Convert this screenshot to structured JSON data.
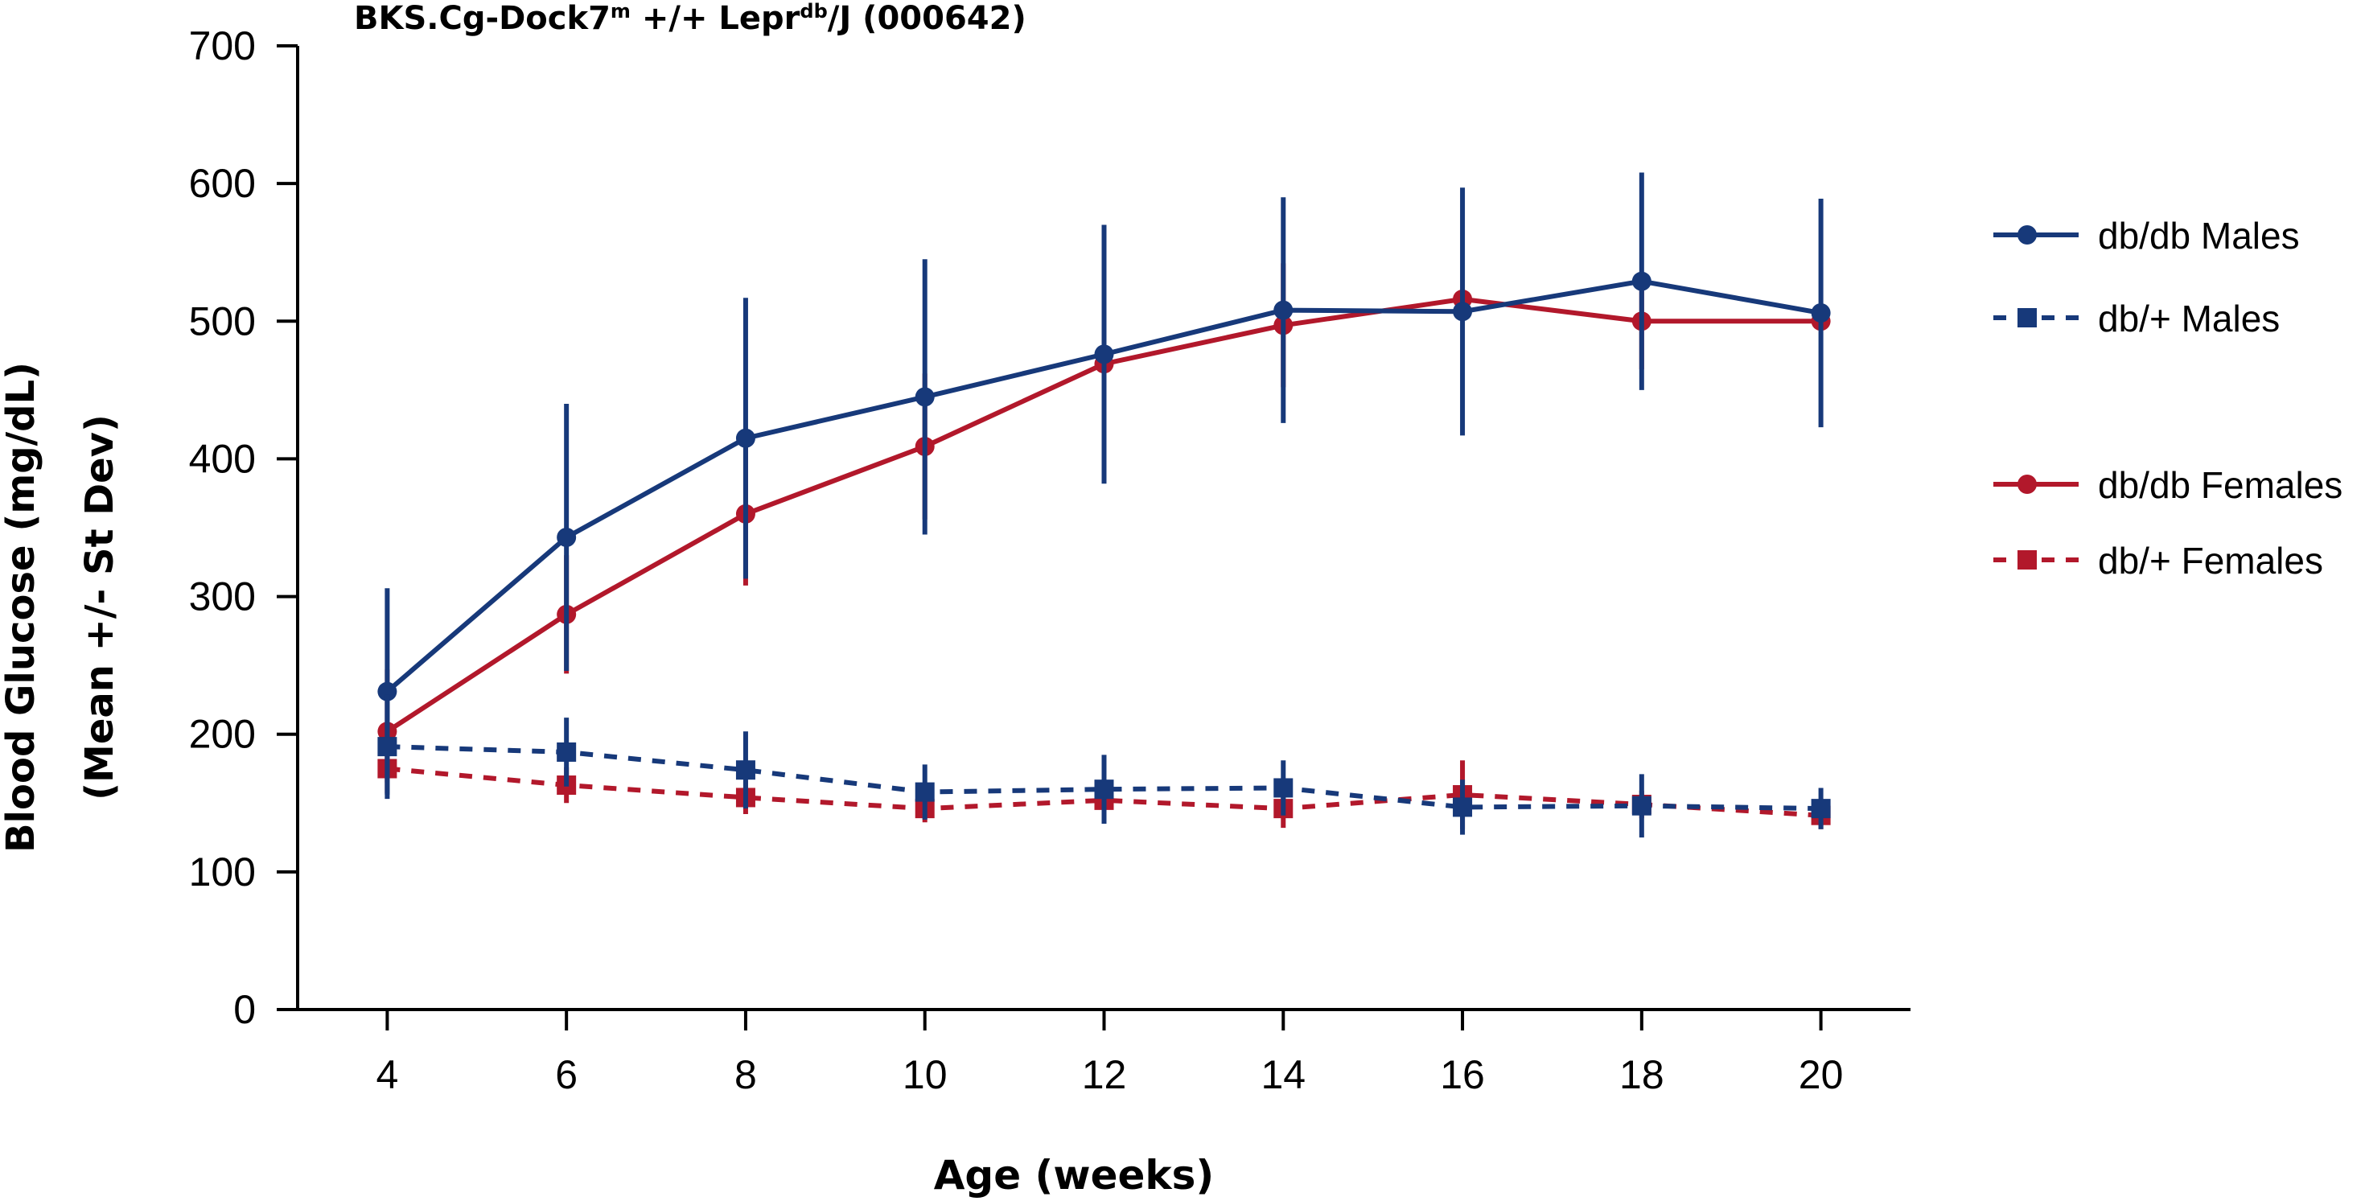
{
  "chart_data": {
    "type": "line",
    "title": {
      "base": "BKS.Cg-Dock7",
      "sup1": "m",
      "mid": " +/+ Lepr",
      "sup2": "db",
      "tail": "/J (000642)"
    },
    "xlabel": "Age (weeks)",
    "ylabel_line1": "Blood Glucose (mg/dL)",
    "ylabel_line2": "(Mean +/- St Dev)",
    "x": [
      4,
      6,
      8,
      10,
      12,
      14,
      16,
      18,
      20
    ],
    "x_tick_labels": [
      "4",
      "6",
      "8",
      "10",
      "12",
      "14",
      "16",
      "18",
      "20"
    ],
    "xlim": [
      3,
      21
    ],
    "ylim": [
      0,
      700
    ],
    "y_ticks": [
      0,
      100,
      200,
      300,
      400,
      500,
      600,
      700
    ],
    "y_tick_labels": [
      "0",
      "100",
      "200",
      "300",
      "400",
      "500",
      "600",
      "700"
    ],
    "grid": false,
    "legend_position": "right",
    "colors": {
      "blue": "#17397a",
      "red": "#b2182b"
    },
    "series": [
      {
        "name": "db/db Females",
        "color": "#b2182b",
        "dashed": false,
        "marker": "circle",
        "values": [
          202,
          287,
          360,
          409,
          469,
          497,
          516,
          500,
          500
        ],
        "errors": [
          45,
          43,
          52,
          53,
          48,
          45,
          0,
          35,
          0
        ]
      },
      {
        "name": "db/+ Females",
        "color": "#b2182b",
        "dashed": true,
        "marker": "square",
        "values": [
          175,
          163,
          154,
          146,
          152,
          146,
          156,
          149,
          141
        ],
        "errors": [
          10,
          13,
          12,
          10,
          14,
          14,
          25,
          10,
          10
        ]
      },
      {
        "name": "db/db Males",
        "color": "#17397a",
        "dashed": false,
        "marker": "circle",
        "values": [
          231,
          343,
          415,
          445,
          476,
          508,
          507,
          529,
          506
        ],
        "errors": [
          75,
          97,
          102,
          100,
          94,
          82,
          90,
          79,
          83
        ]
      },
      {
        "name": "db/+ Males",
        "color": "#17397a",
        "dashed": true,
        "marker": "square",
        "values": [
          191,
          187,
          174,
          158,
          160,
          161,
          147,
          148,
          146
        ],
        "errors": [
          38,
          25,
          28,
          20,
          25,
          20,
          20,
          23,
          15
        ]
      }
    ],
    "legend": [
      {
        "label": "db/db Males",
        "series": 2
      },
      {
        "label": "db/+ Males",
        "series": 3
      },
      {
        "label": "db/db Females",
        "series": 0
      },
      {
        "label": "db/+ Females",
        "series": 1
      }
    ]
  }
}
